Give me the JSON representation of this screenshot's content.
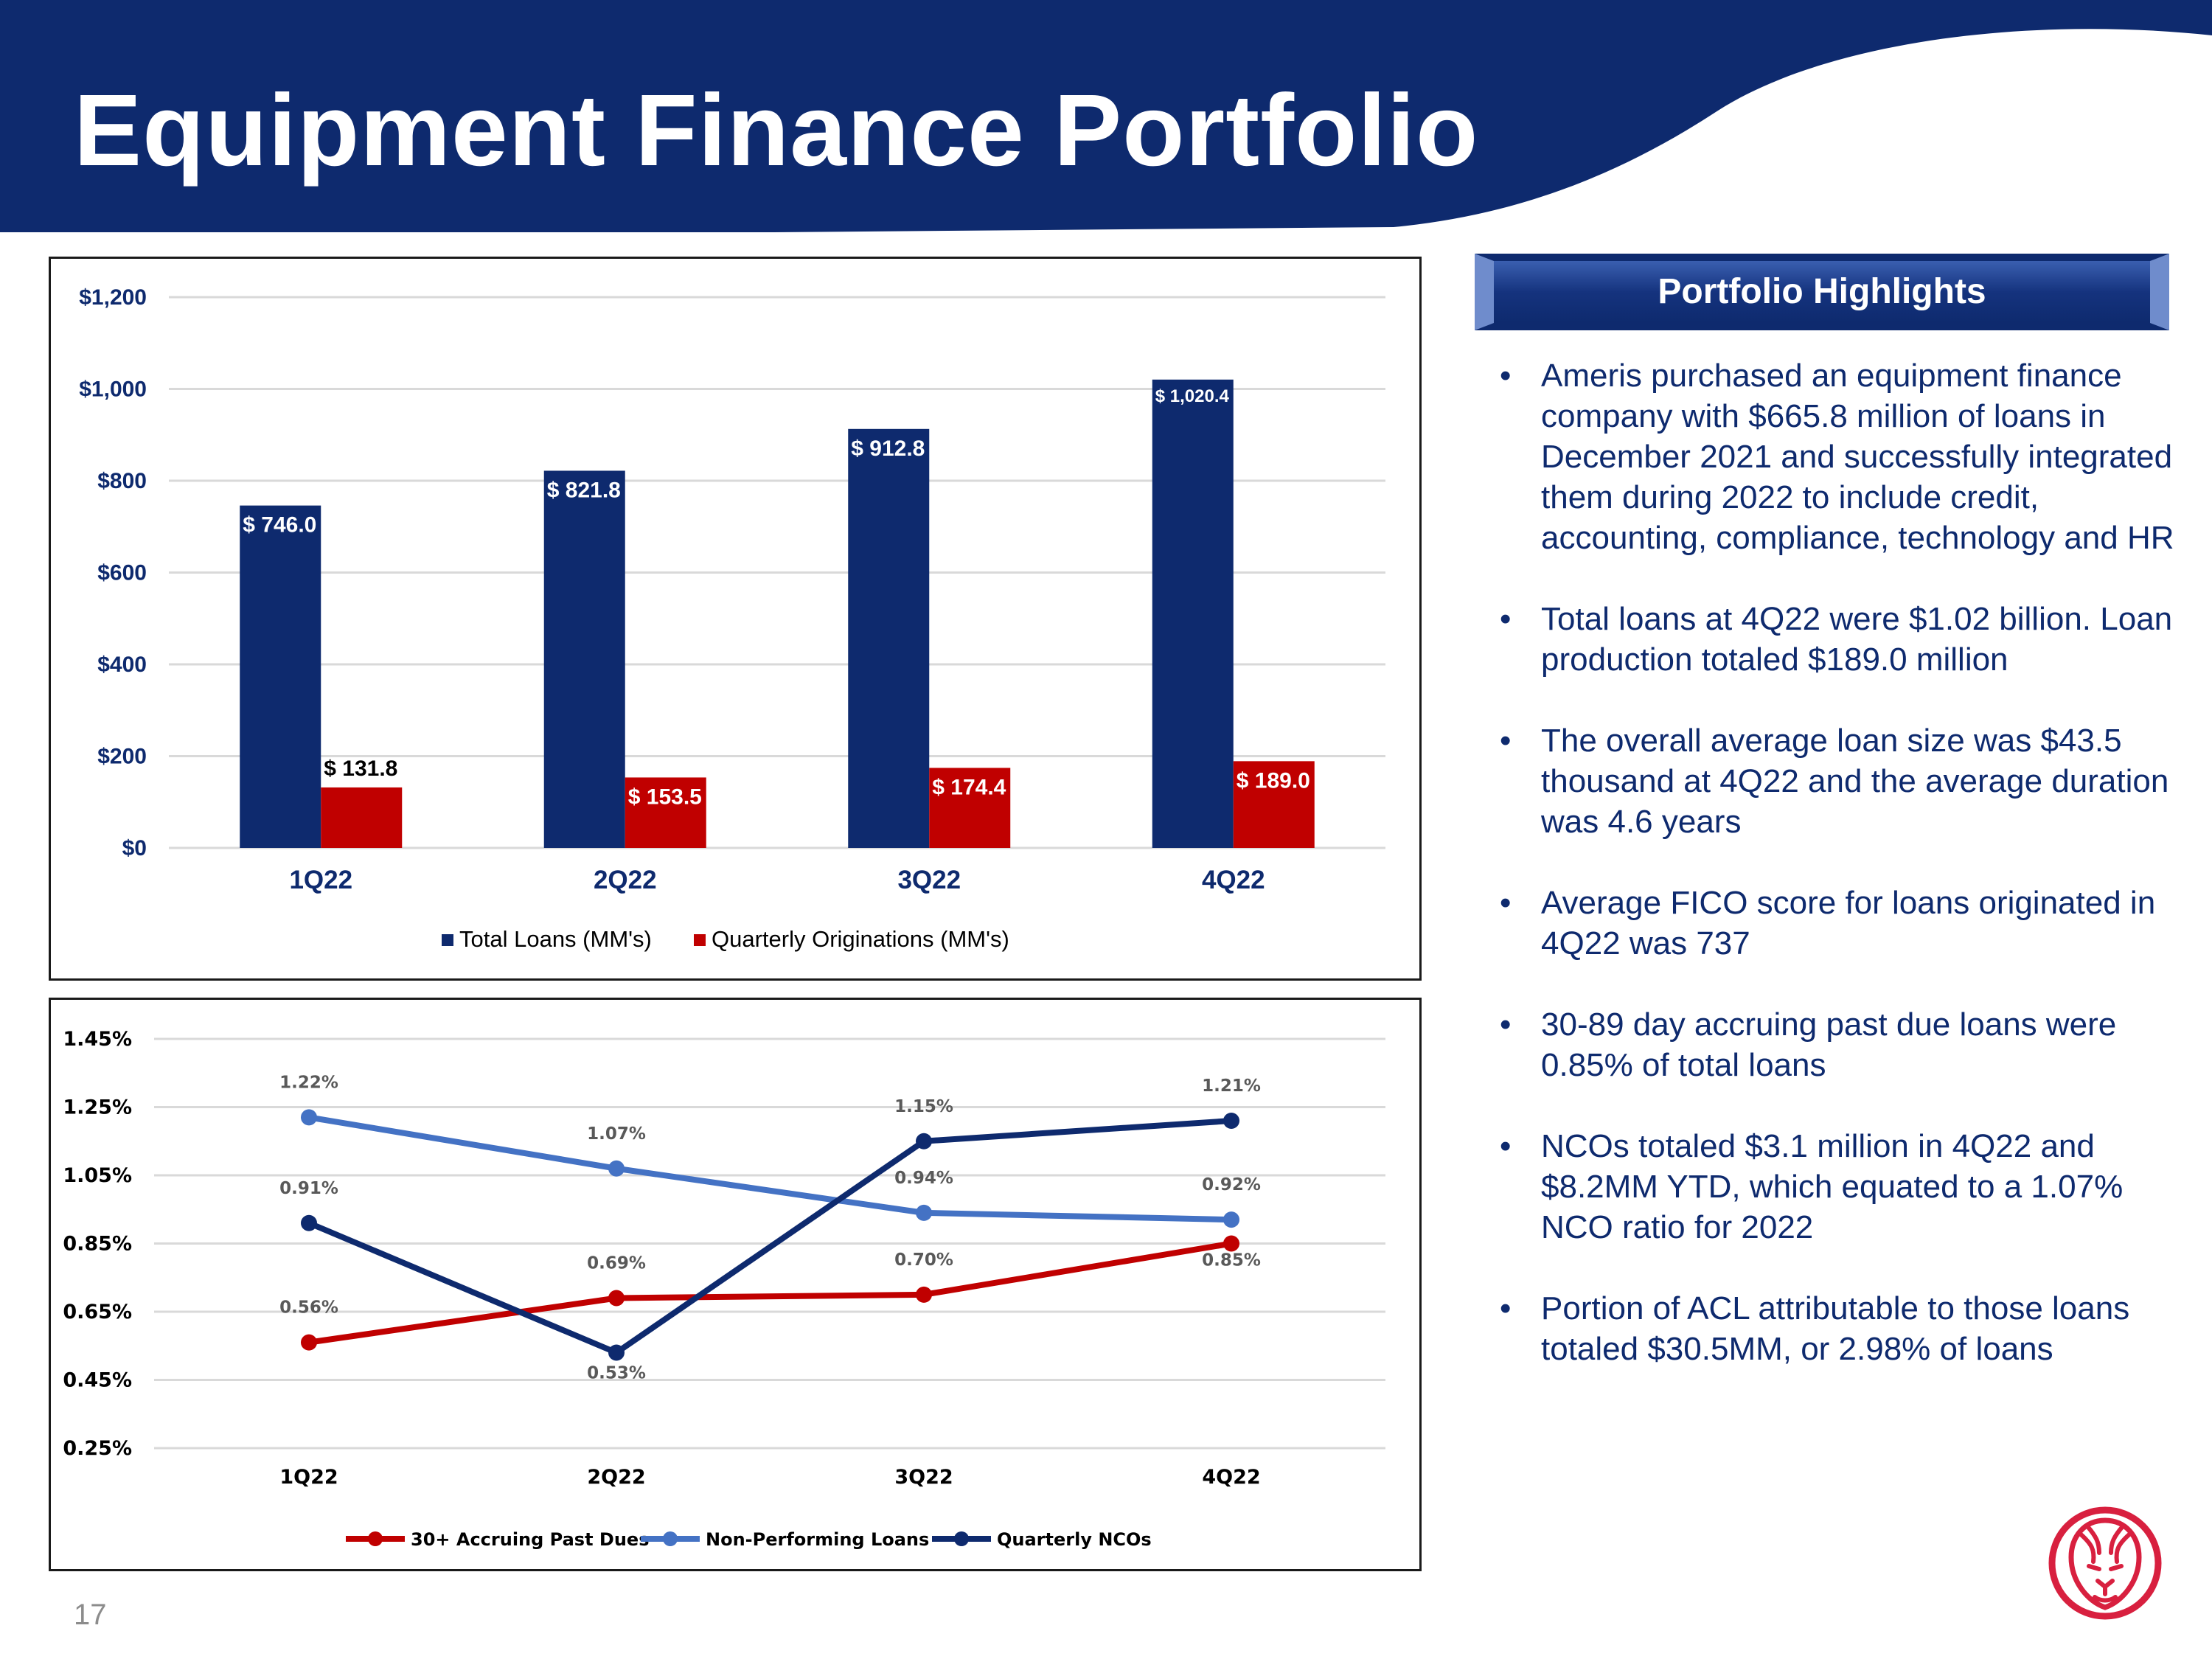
{
  "title": "Equipment Finance Portfolio",
  "page_number": "17",
  "colors": {
    "navy": "#0e2a6e",
    "red": "#c00000",
    "blue": "#4472c4",
    "white": "#ffffff",
    "logo_red": "#d8203f"
  },
  "highlights": {
    "title": "Portfolio Highlights",
    "bullet_glyph": "•",
    "items": [
      "Ameris purchased an equipment finance company with $665.8 million of loans in December 2021 and successfully integrated them during 2022 to include credit, accounting, compliance, technology and HR",
      "Total loans at 4Q22 were $1.02 billion. Loan production totaled $189.0 million",
      "The overall average loan size was $43.5 thousand at 4Q22 and the average duration was 4.6 years",
      "Average FICO score for loans originated in 4Q22 was 737",
      "30-89 day accruing past due loans were 0.85% of total loans",
      "NCOs totaled $3.1 million in 4Q22 and $8.2MM YTD, which equated to a 1.07% NCO ratio for 2022",
      "Portion of ACL attributable to those loans totaled $30.5MM, or 2.98% of loans"
    ]
  },
  "chart_data": [
    {
      "type": "bar",
      "categories": [
        "1Q22",
        "2Q22",
        "3Q22",
        "4Q22"
      ],
      "series": [
        {
          "name": "Total Loans (MM's)",
          "values": [
            746.0,
            821.8,
            912.8,
            1020.4
          ],
          "labels": [
            "$ 746.0",
            "$ 821.8",
            "$ 912.8",
            "$ 1,020.4"
          ],
          "color": "#0e2a6e"
        },
        {
          "name": "Quarterly Originations (MM's)",
          "values": [
            131.8,
            153.5,
            174.4,
            189.0
          ],
          "labels": [
            "$ 131.8",
            "$ 153.5",
            "$ 174.4",
            "$ 189.0"
          ],
          "color": "#c00000"
        }
      ],
      "ylim": [
        0,
        1200
      ],
      "yticks": [
        "$0",
        "$200",
        "$400",
        "$600",
        "$800",
        "$1,000",
        "$1,200"
      ],
      "grid": true,
      "legend": "bottom"
    },
    {
      "type": "line",
      "categories": [
        "1Q22",
        "2Q22",
        "3Q22",
        "4Q22"
      ],
      "series": [
        {
          "name": "30+ Accruing Past Dues",
          "values": [
            0.56,
            0.69,
            0.7,
            0.85
          ],
          "labels": [
            "0.56%",
            "0.69%",
            "0.70%",
            "0.85%"
          ],
          "color": "#c00000"
        },
        {
          "name": "Non-Performing Loans",
          "values": [
            1.22,
            1.07,
            0.94,
            0.92
          ],
          "labels": [
            "1.22%",
            "1.07%",
            "0.94%",
            "0.92%"
          ],
          "color": "#4472c4"
        },
        {
          "name": "Quarterly NCOs",
          "values": [
            0.91,
            0.53,
            1.15,
            1.21
          ],
          "labels": [
            "0.91%",
            "0.53%",
            "1.15%",
            "1.21%"
          ],
          "color": "#0e2a6e"
        }
      ],
      "ylim": [
        0.25,
        1.45
      ],
      "yticks": [
        "0.25%",
        "0.45%",
        "0.65%",
        "0.85%",
        "1.05%",
        "1.25%",
        "1.45%"
      ],
      "grid": true,
      "legend": "bottom"
    }
  ]
}
